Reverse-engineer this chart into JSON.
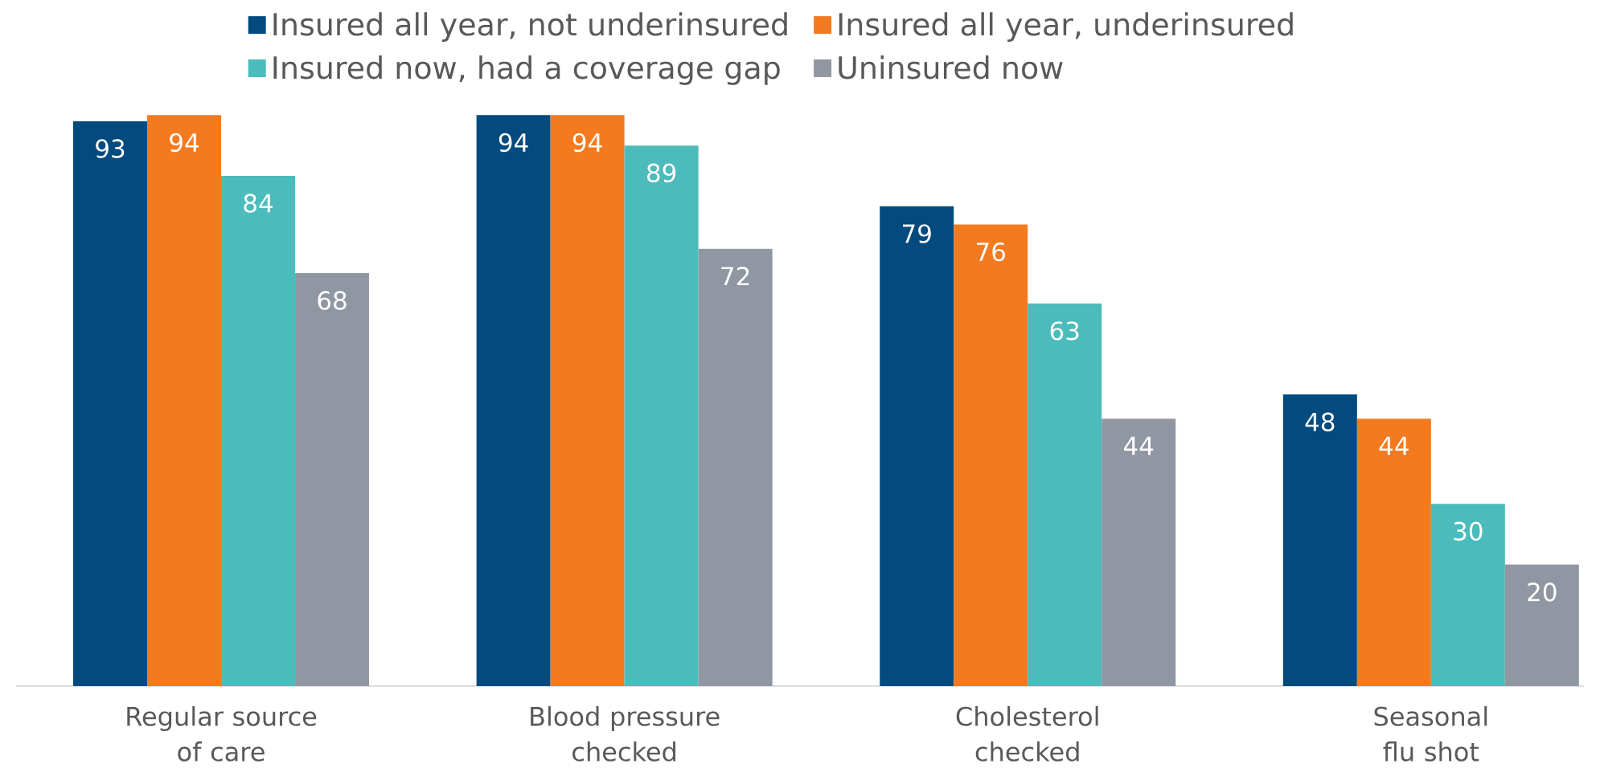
{
  "chart_data": {
    "type": "bar",
    "categories": [
      "Regular source\nof care",
      "Blood pressure\nchecked",
      "Cholesterol\nchecked",
      "Seasonal\nflu shot"
    ],
    "series": [
      {
        "name": "Insured all year, not underinsured",
        "color": "#034a7e",
        "values": [
          93,
          94,
          79,
          48
        ]
      },
      {
        "name": "Insured all year, underinsured",
        "color": "#f47a20",
        "values": [
          94,
          94,
          76,
          44
        ]
      },
      {
        "name": "Insured now, had a coverage gap",
        "color": "#4bbcbb",
        "values": [
          84,
          89,
          63,
          30
        ]
      },
      {
        "name": "Uninsured now",
        "color": "#9097a2",
        "values": [
          68,
          72,
          44,
          20
        ]
      }
    ],
    "data_labels": true,
    "legend": "top",
    "tick_labels": "x"
  }
}
